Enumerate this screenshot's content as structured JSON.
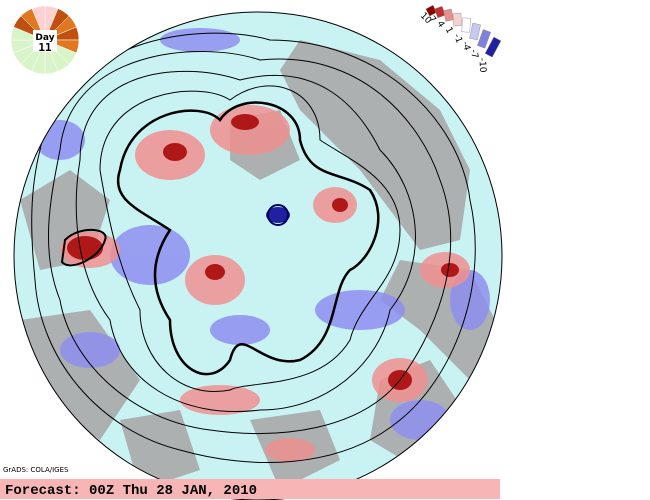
{
  "header": {
    "day_label": "Day",
    "day_number": "11"
  },
  "legend": {
    "labels": [
      "10",
      "7",
      "4",
      "1",
      "-1",
      "-4",
      "-7",
      "-10"
    ]
  },
  "credit": "GrADS: COLA/IGES",
  "footer": "Forecast: 00Z Thu 28 JAN, 2010"
}
